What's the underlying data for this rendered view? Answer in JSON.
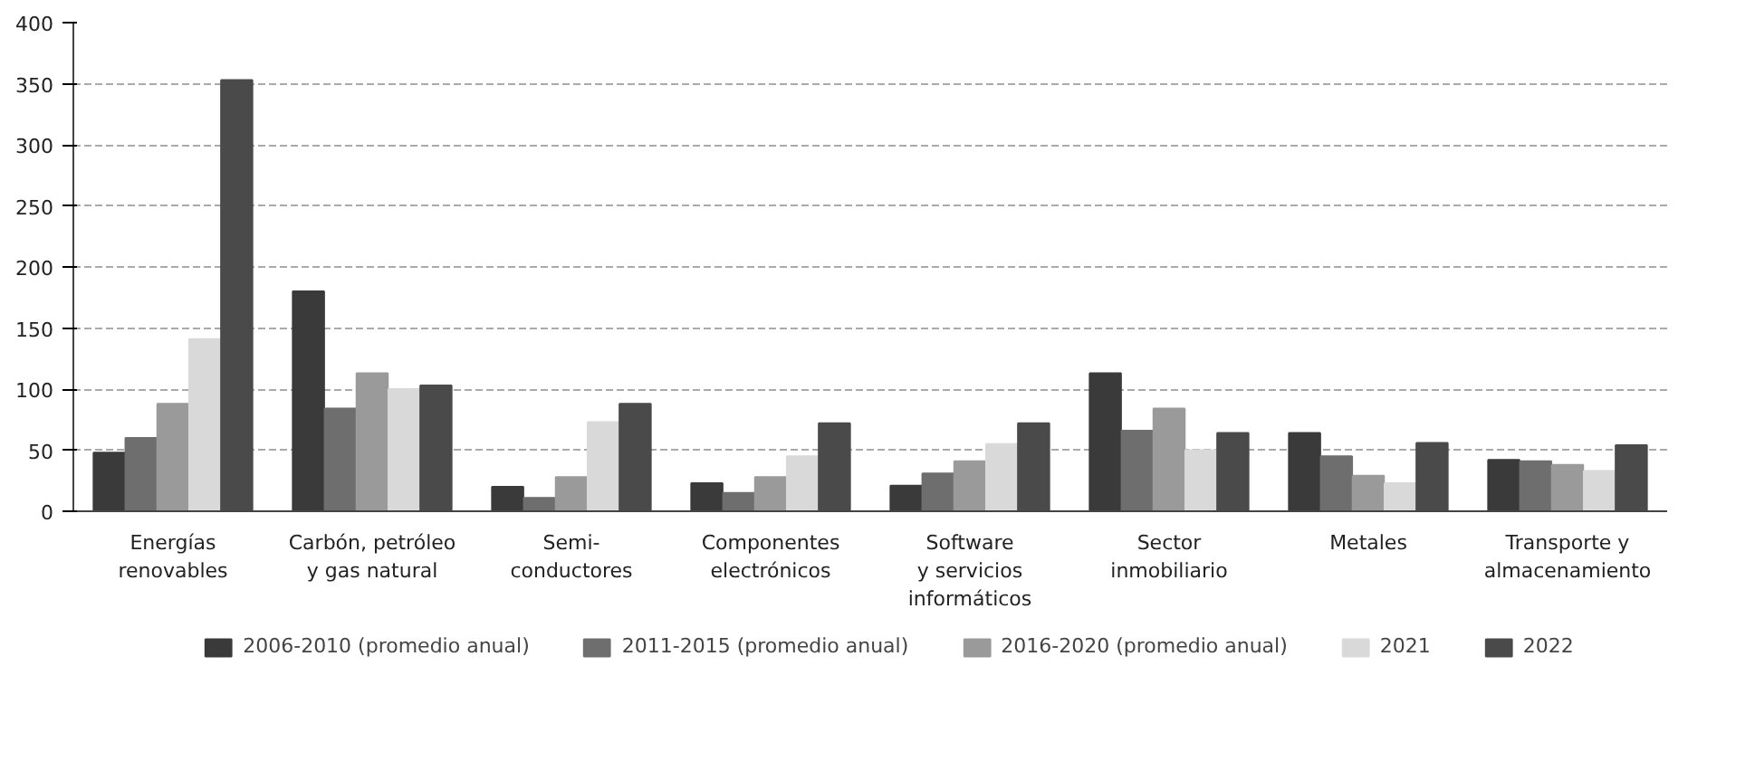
{
  "chart_data": {
    "type": "bar",
    "categories": [
      "Energías\nrenovables",
      "Carbón, petróleo\ny gas natural",
      "Semi-\nconductores",
      "Componentes\nelectrónicos",
      "Software\ny servicios\ninformáticos",
      "Sector\ninmobiliario",
      "Metales",
      "Transporte y\nalmacenamiento"
    ],
    "series": [
      {
        "name": "2006-2010 (promedio anual)",
        "color": "#3a3a3a",
        "values": [
          48,
          180,
          20,
          23,
          21,
          113,
          64,
          42
        ]
      },
      {
        "name": "2011-2015 (promedio anual)",
        "color": "#6e6e6e",
        "values": [
          60,
          84,
          11,
          15,
          31,
          66,
          45,
          41
        ]
      },
      {
        "name": "2016-2020 (promedio anual)",
        "color": "#9a9a9a",
        "values": [
          88,
          113,
          28,
          28,
          41,
          84,
          29,
          38
        ]
      },
      {
        "name": "2021",
        "color": "#d9d9d9",
        "values": [
          141,
          100,
          73,
          45,
          55,
          50,
          23,
          33
        ]
      },
      {
        "name": "2022",
        "color": "#4a4a4a",
        "values": [
          353,
          103,
          88,
          72,
          72,
          64,
          56,
          54
        ]
      }
    ],
    "ylim": [
      0,
      400
    ],
    "yticks": [
      0,
      50,
      100,
      150,
      200,
      250,
      300,
      350,
      400
    ],
    "grid": "y",
    "legend": "bottom"
  }
}
